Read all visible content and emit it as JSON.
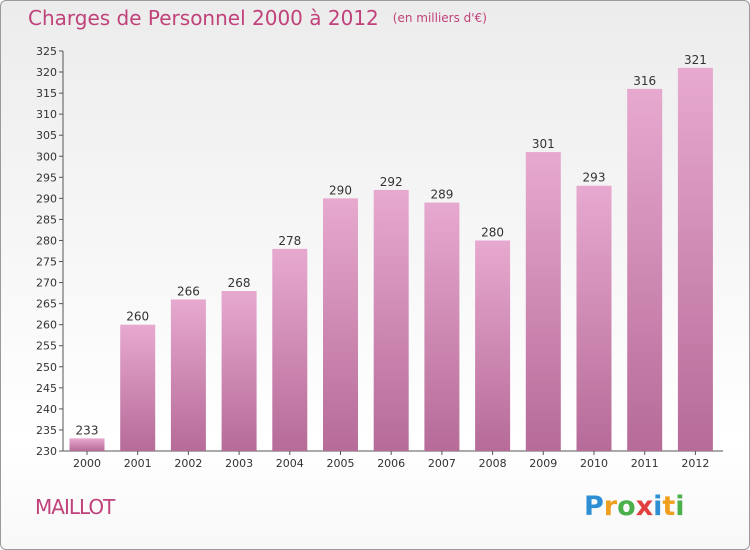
{
  "header": {
    "title": "Charges de Personnel 2000 à 2012",
    "subtitle": "(en milliers d'€)"
  },
  "commune": "MAILLOT",
  "logo": {
    "letters": [
      "P",
      "r",
      "o",
      "x",
      "i",
      "t",
      "i"
    ],
    "colors": [
      "#2f8fd4",
      "#f0a020",
      "#4bb04b",
      "#e04040",
      "#2f8fd4",
      "#f0a020",
      "#4bb04b"
    ]
  },
  "colors": {
    "bar_top": "#e7a9cf",
    "bar_bottom": "#b66b98",
    "title": "#c0427a"
  },
  "chart_data": {
    "type": "bar",
    "categories": [
      "2000",
      "2001",
      "2002",
      "2003",
      "2004",
      "2005",
      "2006",
      "2007",
      "2008",
      "2009",
      "2010",
      "2011",
      "2012"
    ],
    "values": [
      233,
      260,
      266,
      268,
      278,
      290,
      292,
      289,
      280,
      301,
      293,
      316,
      321
    ],
    "ylim": [
      230,
      325
    ],
    "yticks": [
      230,
      235,
      240,
      245,
      250,
      255,
      260,
      265,
      270,
      275,
      280,
      285,
      290,
      295,
      300,
      305,
      310,
      315,
      320,
      325
    ],
    "grid": false
  }
}
